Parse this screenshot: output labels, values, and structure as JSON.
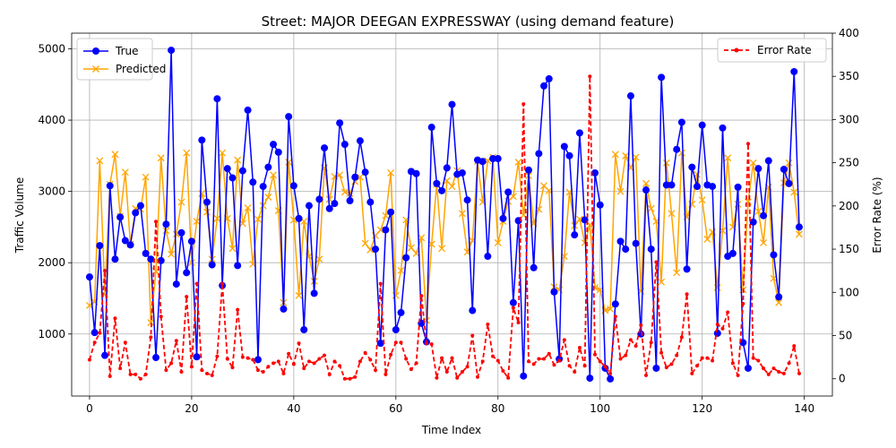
{
  "chart_data": {
    "type": "line",
    "title": "Street: MAJOR DEEGAN EXPRESSWAY (using demand feature)",
    "xlabel": "Time Index",
    "ylabel": "Traffic Volume",
    "y2label": "Error Rate (%)",
    "xlim": [
      -3.5,
      145.5
    ],
    "ylim": [
      130,
      5220
    ],
    "y2lim": [
      -20,
      400
    ],
    "xticks": [
      0,
      20,
      40,
      60,
      80,
      100,
      120,
      140
    ],
    "yticks": [
      1000,
      2000,
      3000,
      4000,
      5000
    ],
    "y2ticks": [
      0,
      50,
      100,
      150,
      200,
      250,
      300,
      350,
      400
    ],
    "grid": true,
    "legend_left": "top-left",
    "legend_right": "top-right",
    "colors": {
      "true": "#0000ff",
      "predicted": "#ffa500",
      "error": "#ff0000",
      "grid": "#b0b0b0"
    },
    "series": [
      {
        "name": "True",
        "axis": "left",
        "marker": "circle",
        "linestyle": "solid",
        "values": [
          1800,
          1020,
          2240,
          700,
          3080,
          2050,
          2640,
          2310,
          2250,
          2700,
          2800,
          2130,
          2050,
          670,
          2030,
          2540,
          4980,
          1700,
          2420,
          1860,
          2300,
          680,
          3720,
          2850,
          1970,
          4300,
          1680,
          3320,
          3190,
          1960,
          3290,
          4140,
          3130,
          640,
          3070,
          3340,
          3660,
          3550,
          1350,
          4050,
          3080,
          2620,
          1060,
          2800,
          1570,
          2890,
          3610,
          2760,
          2830,
          3960,
          3660,
          2870,
          3200,
          3710,
          3270,
          2850,
          2190,
          870,
          2460,
          2710,
          1060,
          1300,
          2070,
          3280,
          3250,
          1150,
          890,
          3900,
          3110,
          3010,
          3330,
          4220,
          3240,
          3260,
          2880,
          1330,
          3440,
          3420,
          2090,
          3460,
          3460,
          2620,
          2990,
          1440,
          2590,
          410,
          3300,
          1930,
          3530,
          4480,
          4580,
          1590,
          650,
          3630,
          3500,
          2390,
          3820,
          2600,
          380,
          3260,
          2810,
          520,
          370,
          1420,
          2300,
          2190,
          4340,
          2270,
          1000,
          3020,
          2190,
          520,
          4600,
          3090,
          3090,
          3590,
          3970,
          1910,
          3340,
          3070,
          3930,
          3090,
          3070,
          1010,
          3890,
          2090,
          2130,
          3060,
          880,
          520,
          2570,
          3320,
          2660,
          3430,
          2110,
          1520,
          3310,
          3110,
          4680,
          2500
        ]
      },
      {
        "name": "Predicted",
        "axis": "left",
        "marker": "x",
        "linestyle": "solid",
        "values": [
          1400,
          1450,
          3430,
          1560,
          3100,
          3520,
          2650,
          3270,
          2260,
          2760,
          2750,
          3200,
          1160,
          1880,
          3470,
          2450,
          2120,
          2400,
          2850,
          3540,
          2000,
          2580,
          2970,
          2710,
          2050,
          2620,
          3540,
          2620,
          2200,
          3440,
          2550,
          2770,
          1980,
          2610,
          2800,
          2920,
          3230,
          2730,
          1440,
          3410,
          2600,
          1540,
          2580,
          2090,
          1740,
          2050,
          3330,
          2890,
          3210,
          3230,
          2990,
          2970,
          3140,
          3200,
          2270,
          2180,
          2380,
          2460,
          2660,
          3260,
          1540,
          1890,
          2600,
          2210,
          2130,
          2350,
          1190,
          2260,
          3100,
          2200,
          3150,
          3070,
          3290,
          2690,
          2150,
          2310,
          3420,
          2850,
          3430,
          3480,
          2280,
          2580,
          2860,
          2930,
          3410,
          2670,
          3220,
          2550,
          2750,
          3080,
          3010,
          1660,
          1620,
          2090,
          2990,
          2520,
          2610,
          2280,
          2530,
          1650,
          1620,
          1330,
          1350,
          3520,
          3000,
          3500,
          3330,
          3480,
          1600,
          3110,
          2760,
          2580,
          1730,
          3400,
          2690,
          1860,
          3540,
          2640,
          2820,
          3240,
          2880,
          2330,
          2430,
          1650,
          2450,
          3470,
          2500,
          2820,
          1620,
          2850,
          3400,
          2720,
          2280,
          3060,
          1780,
          1440,
          3120,
          3400,
          2990,
          2400
        ]
      },
      {
        "name": "Error Rate",
        "axis": "right",
        "marker": "dot",
        "linestyle": "dashed",
        "values": [
          22,
          42,
          53,
          125,
          3,
          70,
          12,
          42,
          5,
          5,
          0,
          5,
          48,
          182,
          72,
          10,
          18,
          44,
          8,
          95,
          14,
          110,
          10,
          6,
          4,
          26,
          110,
          23,
          13,
          80,
          25,
          24,
          22,
          10,
          8,
          14,
          18,
          20,
          6,
          29,
          17,
          41,
          12,
          20,
          18,
          23,
          27,
          5,
          20,
          15,
          0,
          0,
          2,
          20,
          30,
          22,
          10,
          110,
          5,
          28,
          42,
          42,
          23,
          11,
          18,
          96,
          41,
          40,
          1,
          24,
          8,
          24,
          1,
          8,
          14,
          50,
          2,
          20,
          63,
          26,
          21,
          9,
          1,
          82,
          65,
          318,
          20,
          17,
          23,
          23,
          29,
          16,
          21,
          45,
          15,
          8,
          36,
          15,
          350,
          28,
          20,
          14,
          6,
          72,
          23,
          27,
          45,
          38,
          62,
          4,
          42,
          135,
          30,
          13,
          17,
          27,
          48,
          98,
          6,
          15,
          24,
          24,
          21,
          63,
          58,
          77,
          18,
          4,
          87,
          272,
          24,
          21,
          12,
          5,
          12,
          8,
          6,
          18,
          38,
          6
        ]
      }
    ]
  }
}
